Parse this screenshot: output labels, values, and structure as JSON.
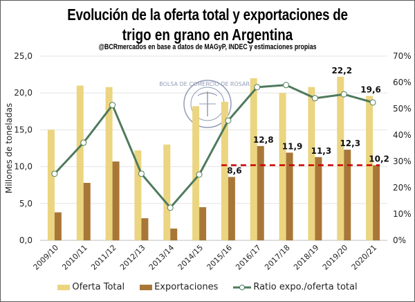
{
  "chart_data": {
    "type": "bar",
    "title_line1": "Evolución de la oferta total y exportaciones de",
    "title_line2": "trigo en grano en Argentina",
    "subtitle": "@BCRmercados en base a datos de MAGyP, INDEC y estimaciones propias",
    "ylabel": "Millones de toneladas",
    "ylim": [
      0,
      25
    ],
    "y2lim": [
      0,
      0.7
    ],
    "yticks": [
      "0,0",
      "5,0",
      "10,0",
      "15,0",
      "20,0",
      "25,0"
    ],
    "y2ticks": [
      "0%",
      "10%",
      "20%",
      "30%",
      "40%",
      "50%",
      "60%",
      "70%"
    ],
    "grid": true,
    "legend_position": "bottom",
    "categories": [
      "2009/10",
      "2010/11",
      "2011/12",
      "2012/13",
      "2013/14",
      "2014/15",
      "2015/16",
      "2016/17",
      "2017/18",
      "2018/19",
      "2019/20",
      "2020/21"
    ],
    "series": [
      {
        "name": "Oferta Total",
        "type": "bar",
        "color": "#EBD580",
        "values": [
          15.0,
          21.0,
          20.8,
          12.2,
          13.0,
          18.2,
          18.8,
          22.0,
          20.0,
          20.8,
          22.2,
          19.6
        ],
        "labels": [
          "",
          "",
          "",
          "",
          "",
          "",
          "",
          "",
          "",
          "",
          "22,2",
          "19,6"
        ]
      },
      {
        "name": "Exportaciones",
        "type": "bar",
        "color": "#A87738",
        "values": [
          3.8,
          7.8,
          10.7,
          3.0,
          1.6,
          4.5,
          8.6,
          12.8,
          11.9,
          11.3,
          12.3,
          10.2
        ],
        "labels": [
          "",
          "",
          "",
          "",
          "",
          "",
          "8,6",
          "12,8",
          "11,9",
          "11,3",
          "12,3",
          "10,2"
        ]
      },
      {
        "name": "Ratio expo./oferta total",
        "type": "line",
        "axis": "right",
        "color": "#4E7A5C",
        "values": [
          0.253,
          0.371,
          0.514,
          0.253,
          0.124,
          0.25,
          0.455,
          0.582,
          0.59,
          0.54,
          0.555,
          0.524
        ]
      }
    ],
    "reference_line": {
      "value": 10.2,
      "from_category": "2015/16",
      "to_category": "2020/21",
      "color": "#CC0000",
      "style": "dashed"
    },
    "watermark": "BOLSA DE COMERCIO DE ROSARIO"
  }
}
